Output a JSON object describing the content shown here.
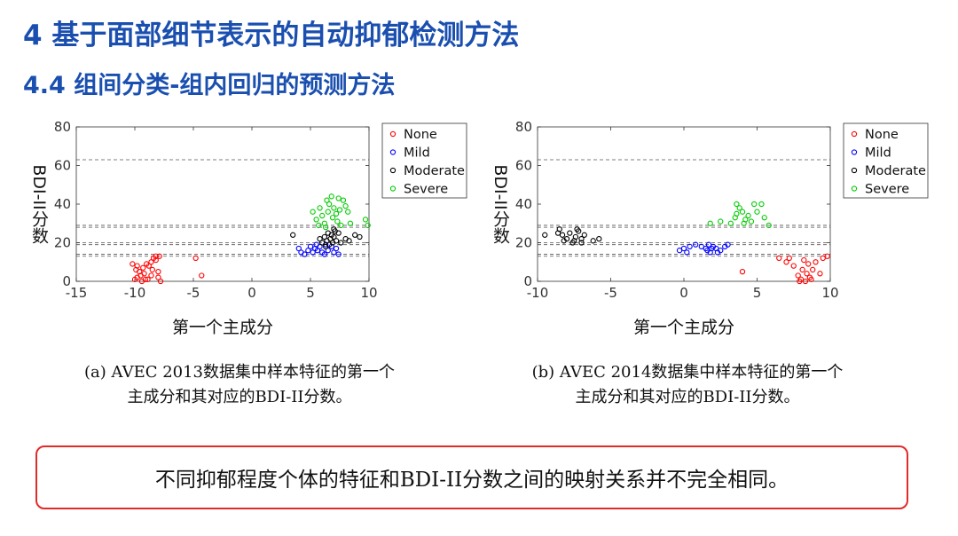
{
  "slide": {
    "title": "4 基于面部细节表示的自动抑郁检测方法",
    "subtitle": "4.4 组间分类-组内回归的预测方法",
    "caption_a_line1": "(a) AVEC 2013数据集中样本特征的第一个",
    "caption_a_line2": "主成分和其对应的BDI-II分数。",
    "caption_b_line1": "(b) AVEC 2014数据集中样本特征的第一个",
    "caption_b_line2": "主成分和其对应的BDI-II分数。",
    "note": "不同抑郁程度个体的特征和BDI-II分数之间的映射关系并不完全相同。",
    "colors": {
      "title": "#1a4fb0",
      "note_border": "#e02b2b"
    }
  },
  "chart_data": [
    {
      "type": "scatter",
      "xlabel": "第一个主成分",
      "ylabel": "BDI-II分数",
      "xlim": [
        -15,
        10
      ],
      "ylim": [
        0,
        80
      ],
      "xticks": [
        -15,
        -10,
        -5,
        0,
        5,
        10
      ],
      "yticks": [
        0,
        20,
        40,
        60,
        80
      ],
      "hlines": [
        13,
        14,
        19,
        20,
        28,
        29,
        63
      ],
      "legend_position": "top-right",
      "series": [
        {
          "name": "None",
          "color": "#ff0000",
          "points": [
            [
              -10,
              1
            ],
            [
              -9.8,
              2
            ],
            [
              -9.5,
              3
            ],
            [
              -9.2,
              4
            ],
            [
              -9.6,
              5
            ],
            [
              -9.8,
              8
            ],
            [
              -9.3,
              7
            ],
            [
              -9.0,
              9
            ],
            [
              -8.8,
              8
            ],
            [
              -8.6,
              10
            ],
            [
              -8.4,
              12
            ],
            [
              -8.2,
              11
            ],
            [
              -8.5,
              6
            ],
            [
              -8.0,
              5
            ],
            [
              -9.1,
              1
            ],
            [
              -8.6,
              3
            ],
            [
              -8.0,
              2
            ],
            [
              -7.9,
              13
            ],
            [
              -8.2,
              13
            ],
            [
              -9.4,
              0
            ],
            [
              -9.9,
              6
            ],
            [
              -8.9,
              1
            ],
            [
              -7.8,
              0
            ],
            [
              -4.8,
              12
            ],
            [
              -4.3,
              3
            ],
            [
              -10.2,
              9
            ]
          ]
        },
        {
          "name": "Mild",
          "color": "#0000ff",
          "points": [
            [
              4,
              17
            ],
            [
              4.2,
              15
            ],
            [
              4.5,
              14
            ],
            [
              4.8,
              16
            ],
            [
              5.0,
              18
            ],
            [
              5.2,
              15
            ],
            [
              5.4,
              17
            ],
            [
              5.6,
              16
            ],
            [
              5.8,
              18
            ],
            [
              6.0,
              15
            ],
            [
              6.2,
              14
            ],
            [
              6.5,
              16
            ],
            [
              6.8,
              18
            ],
            [
              7.0,
              15
            ],
            [
              7.2,
              17
            ],
            [
              5.5,
              19
            ],
            [
              6.3,
              19
            ],
            [
              7.4,
              14
            ]
          ]
        },
        {
          "name": "Moderate",
          "color": "#000000",
          "points": [
            [
              3.5,
              24
            ],
            [
              5.8,
              22
            ],
            [
              6.0,
              20
            ],
            [
              6.2,
              23
            ],
            [
              6.4,
              21
            ],
            [
              6.5,
              25
            ],
            [
              6.6,
              19
            ],
            [
              6.7,
              22
            ],
            [
              6.8,
              24
            ],
            [
              6.9,
              20
            ],
            [
              7.0,
              23
            ],
            [
              7.1,
              26
            ],
            [
              7.2,
              21
            ],
            [
              7.4,
              25
            ],
            [
              7.6,
              20
            ],
            [
              8.0,
              22
            ],
            [
              8.3,
              21
            ],
            [
              8.8,
              24
            ],
            [
              9.2,
              23
            ],
            [
              6.3,
              18
            ],
            [
              7.0,
              27
            ]
          ]
        },
        {
          "name": "Severe",
          "color": "#00cc00",
          "points": [
            [
              5.2,
              36
            ],
            [
              5.5,
              32
            ],
            [
              5.8,
              38
            ],
            [
              6.0,
              34
            ],
            [
              6.2,
              30
            ],
            [
              6.4,
              42
            ],
            [
              6.5,
              36
            ],
            [
              6.6,
              40
            ],
            [
              6.8,
              44
            ],
            [
              7.0,
              38
            ],
            [
              7.2,
              35
            ],
            [
              7.3,
              31
            ],
            [
              7.5,
              37
            ],
            [
              7.8,
              42
            ],
            [
              8.0,
              39
            ],
            [
              6.3,
              28
            ],
            [
              6.9,
              33
            ],
            [
              7.6,
              29
            ],
            [
              8.4,
              30
            ],
            [
              9.7,
              32
            ],
            [
              5.7,
              29
            ],
            [
              7.4,
              43
            ],
            [
              8.2,
              36
            ],
            [
              9.9,
              29
            ]
          ]
        }
      ]
    },
    {
      "type": "scatter",
      "xlabel": "第一个主成分",
      "ylabel": "BDI-II分数",
      "xlim": [
        -10,
        10
      ],
      "ylim": [
        0,
        80
      ],
      "xticks": [
        -10,
        -5,
        0,
        5,
        10
      ],
      "yticks": [
        0,
        20,
        40,
        60,
        80
      ],
      "hlines": [
        13,
        14,
        19,
        20,
        28,
        29,
        63
      ],
      "legend_position": "top-right",
      "series": [
        {
          "name": "None",
          "color": "#ff0000",
          "points": [
            [
              4.0,
              5
            ],
            [
              6.5,
              12
            ],
            [
              7.0,
              10
            ],
            [
              7.5,
              8
            ],
            [
              7.8,
              3
            ],
            [
              8.0,
              1
            ],
            [
              8.1,
              6
            ],
            [
              8.2,
              11
            ],
            [
              8.3,
              0
            ],
            [
              8.4,
              4
            ],
            [
              8.5,
              9
            ],
            [
              8.6,
              2
            ],
            [
              8.8,
              6
            ],
            [
              9.0,
              10
            ],
            [
              9.3,
              4
            ],
            [
              9.5,
              12
            ],
            [
              9.8,
              13
            ],
            [
              7.9,
              0
            ],
            [
              8.7,
              1
            ],
            [
              7.2,
              12
            ]
          ]
        },
        {
          "name": "Mild",
          "color": "#0000ff",
          "points": [
            [
              -0.3,
              16
            ],
            [
              0,
              17
            ],
            [
              0.4,
              18
            ],
            [
              0.8,
              19
            ],
            [
              1.2,
              18
            ],
            [
              1.5,
              17
            ],
            [
              1.6,
              16
            ],
            [
              1.8,
              15
            ],
            [
              1.9,
              17
            ],
            [
              2.0,
              18
            ],
            [
              2.2,
              17
            ],
            [
              2.5,
              16
            ],
            [
              2.8,
              18
            ],
            [
              3.0,
              19
            ],
            [
              1.7,
              19
            ],
            [
              0.2,
              15
            ],
            [
              2.3,
              15
            ]
          ]
        },
        {
          "name": "Moderate",
          "color": "#000000",
          "points": [
            [
              -9.5,
              24
            ],
            [
              -8.5,
              27
            ],
            [
              -8.3,
              24
            ],
            [
              -8.0,
              22
            ],
            [
              -7.8,
              25
            ],
            [
              -7.5,
              21
            ],
            [
              -7.4,
              23
            ],
            [
              -7.2,
              26
            ],
            [
              -7.0,
              22
            ],
            [
              -6.8,
              24
            ],
            [
              -8.2,
              21
            ],
            [
              -7.6,
              20
            ],
            [
              -7.0,
              20
            ],
            [
              -6.2,
              21
            ],
            [
              -5.8,
              22
            ],
            [
              -8.6,
              25
            ],
            [
              -7.3,
              27
            ]
          ]
        },
        {
          "name": "Severe",
          "color": "#00cc00",
          "points": [
            [
              1.8,
              30
            ],
            [
              2.5,
              31
            ],
            [
              3.2,
              30
            ],
            [
              3.5,
              33
            ],
            [
              3.6,
              35
            ],
            [
              3.8,
              38
            ],
            [
              4.0,
              36
            ],
            [
              4.2,
              32
            ],
            [
              4.4,
              34
            ],
            [
              4.6,
              31
            ],
            [
              4.8,
              40
            ],
            [
              5.0,
              36
            ],
            [
              5.3,
              40
            ],
            [
              5.5,
              33
            ],
            [
              4.1,
              30
            ],
            [
              5.8,
              29
            ],
            [
              3.6,
              40
            ]
          ]
        }
      ]
    }
  ]
}
